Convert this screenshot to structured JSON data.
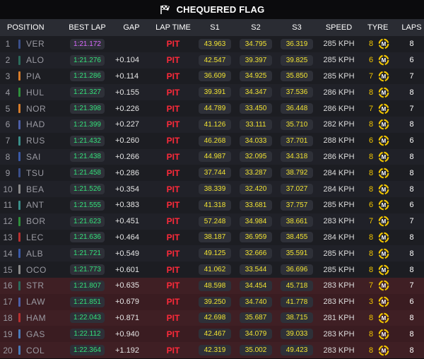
{
  "title": "CHEQUERED FLAG",
  "columns": {
    "position": "POSITION",
    "best_lap": "BEST LAP",
    "gap": "GAP",
    "lap_time": "LAP TIME",
    "s1": "S1",
    "s2": "S2",
    "s3": "S3",
    "speed": "SPEED",
    "tyre": "TYRE",
    "laps": "LAPS"
  },
  "colors": {
    "best_lap_green": "#34e07a",
    "best_lap_purple": "#d96bff",
    "sector_yellow": "#f0e232",
    "pit_red": "#ff2a3a",
    "tyre_yellow": "#f0c400",
    "eliminated_row": "#3a1c21"
  },
  "tyre_compound": "M",
  "rows": [
    {
      "pos": "1",
      "driver": "VER",
      "team_color": "#3a4f8a",
      "best_lap": "1:21.172",
      "fastest": true,
      "gap": "",
      "lap_time": "PIT",
      "s1": "43.963",
      "s2": "34.795",
      "s3": "36.319",
      "speed": "285 KPH",
      "tyre_age": "8",
      "laps": "8",
      "eliminated": false
    },
    {
      "pos": "2",
      "driver": "ALO",
      "team_color": "#2b6b5b",
      "best_lap": "1:21.276",
      "fastest": false,
      "gap": "+0.104",
      "lap_time": "PIT",
      "s1": "42.547",
      "s2": "39.397",
      "s3": "39.825",
      "speed": "285 KPH",
      "tyre_age": "6",
      "laps": "6",
      "eliminated": false
    },
    {
      "pos": "3",
      "driver": "PIA",
      "team_color": "#d77d2a",
      "best_lap": "1:21.286",
      "fastest": false,
      "gap": "+0.114",
      "lap_time": "PIT",
      "s1": "36.609",
      "s2": "34.925",
      "s3": "35.850",
      "speed": "285 KPH",
      "tyre_age": "7",
      "laps": "7",
      "eliminated": false
    },
    {
      "pos": "4",
      "driver": "HUL",
      "team_color": "#2e8f3b",
      "best_lap": "1:21.327",
      "fastest": false,
      "gap": "+0.155",
      "lap_time": "PIT",
      "s1": "39.391",
      "s2": "34.347",
      "s3": "37.536",
      "speed": "286 KPH",
      "tyre_age": "8",
      "laps": "8",
      "eliminated": false
    },
    {
      "pos": "5",
      "driver": "NOR",
      "team_color": "#d77d2a",
      "best_lap": "1:21.398",
      "fastest": false,
      "gap": "+0.226",
      "lap_time": "PIT",
      "s1": "44.789",
      "s2": "33.450",
      "s3": "36.448",
      "speed": "286 KPH",
      "tyre_age": "7",
      "laps": "7",
      "eliminated": false
    },
    {
      "pos": "6",
      "driver": "HAD",
      "team_color": "#4d5fa8",
      "best_lap": "1:21.399",
      "fastest": false,
      "gap": "+0.227",
      "lap_time": "PIT",
      "s1": "41.126",
      "s2": "33.111",
      "s3": "35.710",
      "speed": "282 KPH",
      "tyre_age": "8",
      "laps": "8",
      "eliminated": false
    },
    {
      "pos": "7",
      "driver": "RUS",
      "team_color": "#3a8f8a",
      "best_lap": "1:21.432",
      "fastest": false,
      "gap": "+0.260",
      "lap_time": "PIT",
      "s1": "46.268",
      "s2": "34.033",
      "s3": "37.701",
      "speed": "288 KPH",
      "tyre_age": "6",
      "laps": "6",
      "eliminated": false
    },
    {
      "pos": "8",
      "driver": "SAI",
      "team_color": "#3a5aa8",
      "best_lap": "1:21.438",
      "fastest": false,
      "gap": "+0.266",
      "lap_time": "PIT",
      "s1": "44.987",
      "s2": "32.095",
      "s3": "34.318",
      "speed": "286 KPH",
      "tyre_age": "8",
      "laps": "8",
      "eliminated": false
    },
    {
      "pos": "9",
      "driver": "TSU",
      "team_color": "#3a4f8a",
      "best_lap": "1:21.458",
      "fastest": false,
      "gap": "+0.286",
      "lap_time": "PIT",
      "s1": "37.744",
      "s2": "33.287",
      "s3": "38.792",
      "speed": "284 KPH",
      "tyre_age": "8",
      "laps": "8",
      "eliminated": false
    },
    {
      "pos": "10",
      "driver": "BEA",
      "team_color": "#8a8a8a",
      "best_lap": "1:21.526",
      "fastest": false,
      "gap": "+0.354",
      "lap_time": "PIT",
      "s1": "38.339",
      "s2": "32.420",
      "s3": "37.027",
      "speed": "284 KPH",
      "tyre_age": "8",
      "laps": "8",
      "eliminated": false
    },
    {
      "pos": "11",
      "driver": "ANT",
      "team_color": "#3a8f8a",
      "best_lap": "1:21.555",
      "fastest": false,
      "gap": "+0.383",
      "lap_time": "PIT",
      "s1": "41.318",
      "s2": "33.681",
      "s3": "37.757",
      "speed": "285 KPH",
      "tyre_age": "6",
      "laps": "6",
      "eliminated": false
    },
    {
      "pos": "12",
      "driver": "BOR",
      "team_color": "#2e8f3b",
      "best_lap": "1:21.623",
      "fastest": false,
      "gap": "+0.451",
      "lap_time": "PIT",
      "s1": "57.248",
      "s2": "34.984",
      "s3": "38.661",
      "speed": "283 KPH",
      "tyre_age": "7",
      "laps": "7",
      "eliminated": false
    },
    {
      "pos": "13",
      "driver": "LEC",
      "team_color": "#b83030",
      "best_lap": "1:21.636",
      "fastest": false,
      "gap": "+0.464",
      "lap_time": "PIT",
      "s1": "38.187",
      "s2": "36.959",
      "s3": "38.455",
      "speed": "284 KPH",
      "tyre_age": "8",
      "laps": "8",
      "eliminated": false
    },
    {
      "pos": "14",
      "driver": "ALB",
      "team_color": "#3a5aa8",
      "best_lap": "1:21.721",
      "fastest": false,
      "gap": "+0.549",
      "lap_time": "PIT",
      "s1": "49.125",
      "s2": "32.666",
      "s3": "35.591",
      "speed": "285 KPH",
      "tyre_age": "8",
      "laps": "8",
      "eliminated": false
    },
    {
      "pos": "15",
      "driver": "OCO",
      "team_color": "#8a8a8a",
      "best_lap": "1:21.773",
      "fastest": false,
      "gap": "+0.601",
      "lap_time": "PIT",
      "s1": "41.062",
      "s2": "33.544",
      "s3": "36.696",
      "speed": "285 KPH",
      "tyre_age": "8",
      "laps": "8",
      "eliminated": false
    },
    {
      "pos": "16",
      "driver": "STR",
      "team_color": "#2b6b5b",
      "best_lap": "1:21.807",
      "fastest": false,
      "gap": "+0.635",
      "lap_time": "PIT",
      "s1": "48.598",
      "s2": "34.454",
      "s3": "45.718",
      "speed": "283 KPH",
      "tyre_age": "7",
      "laps": "7",
      "eliminated": true
    },
    {
      "pos": "17",
      "driver": "LAW",
      "team_color": "#4d5fa8",
      "best_lap": "1:21.851",
      "fastest": false,
      "gap": "+0.679",
      "lap_time": "PIT",
      "s1": "39.250",
      "s2": "34.740",
      "s3": "41.778",
      "speed": "283 KPH",
      "tyre_age": "3",
      "laps": "6",
      "eliminated": true
    },
    {
      "pos": "18",
      "driver": "HAM",
      "team_color": "#b83030",
      "best_lap": "1:22.043",
      "fastest": false,
      "gap": "+0.871",
      "lap_time": "PIT",
      "s1": "42.698",
      "s2": "35.687",
      "s3": "38.715",
      "speed": "281 KPH",
      "tyre_age": "8",
      "laps": "8",
      "eliminated": true
    },
    {
      "pos": "19",
      "driver": "GAS",
      "team_color": "#4a7ab8",
      "best_lap": "1:22.112",
      "fastest": false,
      "gap": "+0.940",
      "lap_time": "PIT",
      "s1": "42.467",
      "s2": "34.079",
      "s3": "39.033",
      "speed": "283 KPH",
      "tyre_age": "8",
      "laps": "8",
      "eliminated": true
    },
    {
      "pos": "20",
      "driver": "COL",
      "team_color": "#4a7ab8",
      "best_lap": "1:22.364",
      "fastest": false,
      "gap": "+1.192",
      "lap_time": "PIT",
      "s1": "42.319",
      "s2": "35.002",
      "s3": "49.423",
      "speed": "283 KPH",
      "tyre_age": "8",
      "laps": "8",
      "eliminated": true
    }
  ]
}
